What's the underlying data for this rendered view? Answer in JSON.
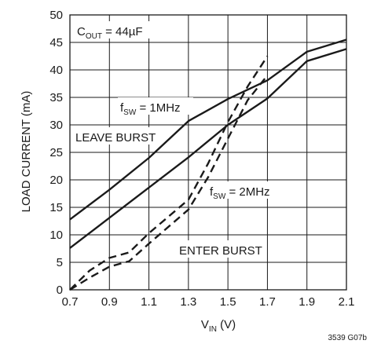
{
  "chart_data": {
    "type": "line",
    "xlabel": {
      "main": "V",
      "sub": "IN",
      "unit": " (V)"
    },
    "ylabel": "LOAD CURRENT (mA)",
    "xlim": [
      0.7,
      2.1
    ],
    "ylim": [
      0,
      50
    ],
    "x_ticks": [
      0.7,
      0.9,
      1.1,
      1.3,
      1.5,
      1.7,
      1.9,
      2.1
    ],
    "y_ticks": [
      0,
      5,
      10,
      15,
      20,
      25,
      30,
      35,
      40,
      45,
      50
    ],
    "grid": true,
    "series": [
      {
        "group": "fsw-1mhz",
        "style": "solid",
        "points": [
          [
            0.7,
            12.8
          ],
          [
            0.9,
            18.2
          ],
          [
            1.1,
            24
          ],
          [
            1.3,
            30.7
          ],
          [
            1.5,
            34.7
          ],
          [
            1.7,
            38.1
          ],
          [
            1.9,
            43.3
          ],
          [
            2.1,
            45.5
          ]
        ]
      },
      {
        "group": "fsw-2mhz",
        "style": "solid",
        "points": [
          [
            0.7,
            7.6
          ],
          [
            0.9,
            13.1
          ],
          [
            1.1,
            18.6
          ],
          [
            1.3,
            24.1
          ],
          [
            1.5,
            30
          ],
          [
            1.7,
            34.8
          ],
          [
            1.9,
            41.6
          ],
          [
            2.1,
            43.8
          ]
        ]
      },
      {
        "group": "fsw-1mhz",
        "style": "dashed",
        "points": [
          [
            0.7,
            0
          ],
          [
            0.8,
            3.5
          ],
          [
            0.9,
            5.8
          ],
          [
            1.0,
            6.8
          ],
          [
            1.1,
            10.3
          ],
          [
            1.3,
            16.4
          ],
          [
            1.4,
            23
          ],
          [
            1.5,
            30.5
          ],
          [
            1.6,
            37
          ],
          [
            1.7,
            42.5
          ]
        ]
      },
      {
        "group": "fsw-2mhz",
        "style": "dashed",
        "points": [
          [
            0.7,
            0
          ],
          [
            0.8,
            2.2
          ],
          [
            0.9,
            4.2
          ],
          [
            1.0,
            5.2
          ],
          [
            1.1,
            8.4
          ],
          [
            1.3,
            14.6
          ],
          [
            1.4,
            20.5
          ],
          [
            1.5,
            27.5
          ],
          [
            1.6,
            34.5
          ],
          [
            1.7,
            39
          ]
        ]
      }
    ],
    "annotations": {
      "cout": {
        "main": "C",
        "sub": "OUT",
        "rest": " = 44µF"
      },
      "fsw1": {
        "main": "f",
        "sub": "SW",
        "rest": " = 1MHz"
      },
      "fsw2": {
        "main": "f",
        "sub": "SW",
        "rest": " = 2MHz"
      },
      "leave": "LEAVE BURST",
      "enter": "ENTER BURST",
      "figure_code": "3539 G07b"
    }
  }
}
